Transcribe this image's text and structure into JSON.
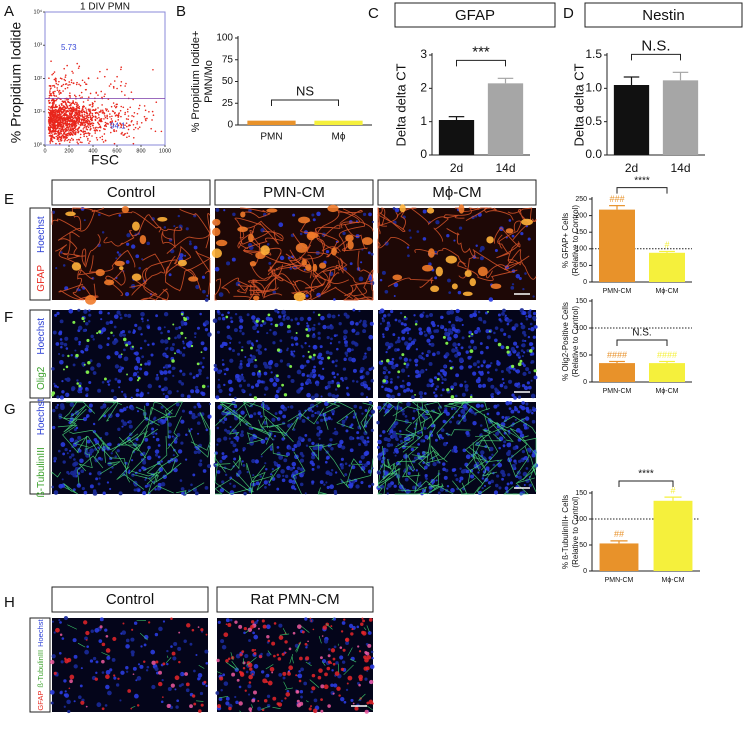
{
  "chart_data": [
    {
      "type": "scatter",
      "title": "1 DIV PMN",
      "x_label": "FSC",
      "y_label": "% Propidium Iodide",
      "xlim": [
        0,
        1000
      ],
      "xticks": [
        0,
        200,
        400,
        600,
        800,
        1000
      ],
      "ylim": [
        1,
        10000
      ],
      "log_y": true,
      "yticks": [
        {
          "value": 1,
          "label": "10⁰"
        },
        {
          "value": 10,
          "label": "10¹"
        },
        {
          "value": 100,
          "label": "10²"
        },
        {
          "value": 1000,
          "label": "10³"
        },
        {
          "value": 10000,
          "label": "10⁴"
        }
      ],
      "color": "#e8261c",
      "annotations": [
        "5.73",
        "94.1"
      ]
    },
    {
      "type": "bar",
      "y_label": [
        "% Propidium Iodide+",
        "PMN/Mo"
      ],
      "categories": [
        "PMN",
        "Mϕ"
      ],
      "values": [
        5,
        5
      ],
      "colors": [
        "#e8922a",
        "#f5f03c"
      ],
      "ylim": [
        0,
        100
      ],
      "yticks": [
        0,
        25,
        50,
        75,
        100
      ],
      "comparison": "NS"
    },
    {
      "type": "bar",
      "title": "GFAP",
      "y_label": "Delta delta CT",
      "categories": [
        "2d",
        "14d"
      ],
      "values": [
        1.05,
        2.15
      ],
      "errors": [
        0.1,
        0.15
      ],
      "colors": [
        "#111111",
        "#a6a6a6"
      ],
      "ylim": [
        0,
        3
      ],
      "yticks": [
        0,
        1,
        2,
        3
      ],
      "comparison": "***"
    },
    {
      "type": "bar",
      "title": "Nestin",
      "y_label": "Delta delta CT",
      "categories": [
        "2d",
        "14d"
      ],
      "values": [
        1.05,
        1.12
      ],
      "errors": [
        0.12,
        0.12
      ],
      "colors": [
        "#111111",
        "#a6a6a6"
      ],
      "ylim": [
        0,
        1.5
      ],
      "yticks": [
        {
          "value": 0,
          "label": "0.0"
        },
        {
          "value": 0.5,
          "label": "0.5"
        },
        {
          "value": 1,
          "label": "1.0"
        },
        {
          "value": 1.5,
          "label": "1.5"
        }
      ],
      "comparison": "N.S."
    },
    {
      "type": "bar",
      "y_label": [
        "% GFAP+ Cells",
        "(Relative to Control)"
      ],
      "categories": [
        "PMN-CM",
        "Mϕ-CM"
      ],
      "values": [
        218,
        88
      ],
      "errors": [
        12,
        4
      ],
      "colors": [
        "#e8922a",
        "#f5f03c"
      ],
      "bar_labels": [
        "###",
        "#"
      ],
      "ylim": [
        0,
        250
      ],
      "yticks": [
        0,
        50,
        100,
        150,
        200,
        250
      ],
      "reference_line": 100,
      "comparison": "****"
    },
    {
      "type": "bar",
      "y_label": [
        "% Olig2-Positive Cells",
        "(Relative to Control)"
      ],
      "categories": [
        "PMN-CM",
        "Mϕ-CM"
      ],
      "values": [
        35,
        35
      ],
      "errors": [
        3,
        3
      ],
      "colors": [
        "#e8922a",
        "#f5f03c"
      ],
      "bar_labels": [
        "####",
        "####"
      ],
      "ylim": [
        0,
        150
      ],
      "yticks": [
        0,
        50,
        100,
        150
      ],
      "reference_line": 100,
      "comparison": "N.S."
    },
    {
      "type": "bar",
      "y_label": [
        "% ß-TubulinIII+ Cells",
        "(Relative to Control)"
      ],
      "categories": [
        "PMN-CM",
        "Mϕ-CM"
      ],
      "values": [
        53,
        135
      ],
      "errors": [
        5,
        7
      ],
      "colors": [
        "#e8922a",
        "#f5f03c"
      ],
      "bar_labels": [
        "##",
        "#"
      ],
      "ylim": [
        0,
        150
      ],
      "yticks": [
        0,
        50,
        100,
        150
      ],
      "reference_line": 100,
      "comparison": "****"
    }
  ],
  "panel_letters": [
    "A",
    "B",
    "C",
    "D"
  ],
  "micrographs": [
    {
      "panel": "E",
      "columns": [
        "Control",
        "PMN-CM",
        "Mϕ-CM"
      ],
      "stains": [
        "GFAP",
        "Hoechst"
      ],
      "stain_colors": [
        "#e8261c",
        "#2b3fd6"
      ]
    },
    {
      "panel": "F",
      "stains": [
        "Olig2",
        "Hoechst"
      ],
      "stain_colors": [
        "#3aa02a",
        "#2b3fd6"
      ]
    },
    {
      "panel": "G",
      "stains": [
        "ß-TubulinIII",
        "Hoechst"
      ],
      "stain_colors": [
        "#3aa02a",
        "#2b3fd6"
      ]
    },
    {
      "panel": "H",
      "columns": [
        "Control",
        "Rat PMN-CM"
      ],
      "stains": [
        "GFAP",
        "ß-TubulinIII",
        "Hoechst"
      ],
      "stain_colors": [
        "#e8261c",
        "#3aa02a",
        "#2b3fd6"
      ]
    }
  ]
}
